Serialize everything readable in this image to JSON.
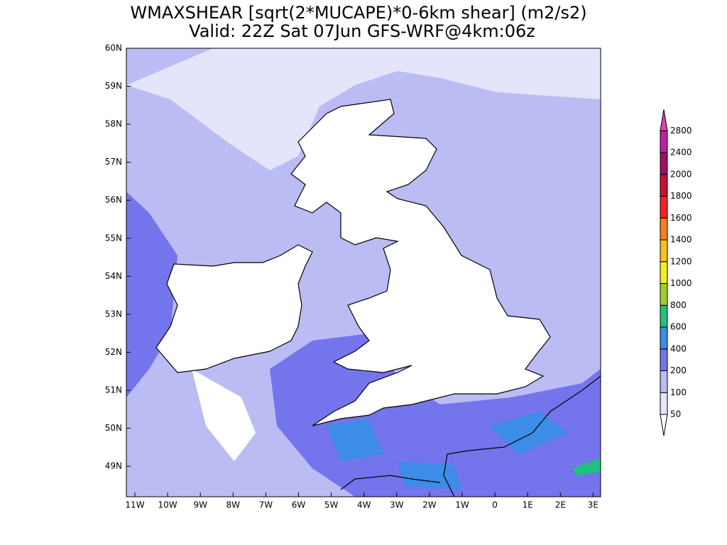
{
  "header": {
    "title": "WMAXSHEAR [sqrt(2*MUCAPE)*0-6km shear] (m2/s2)",
    "subtitle": "Valid: 22Z Sat 07Jun GFS-WRF@4km:06z"
  },
  "map": {
    "lat_labels": [
      "60N",
      "59N",
      "58N",
      "57N",
      "56N",
      "55N",
      "54N",
      "53N",
      "52N",
      "51N",
      "50N",
      "49N"
    ],
    "lon_labels": [
      "11W",
      "10W",
      "9W",
      "8W",
      "7W",
      "6W",
      "5W",
      "4W",
      "3W",
      "2W",
      "1W",
      "0",
      "1E",
      "2E",
      "3E"
    ]
  },
  "colorbar": {
    "levels": [
      50,
      100,
      200,
      400,
      600,
      800,
      1000,
      1200,
      1400,
      1600,
      1800,
      2000,
      2400,
      2800
    ],
    "colors": [
      "#ffffff",
      "#e4e4fa",
      "#bcbcf4",
      "#7474ec",
      "#3c8ce8",
      "#22c07c",
      "#9cd030",
      "#f0f020",
      "#f8c020",
      "#f88020",
      "#f82020",
      "#c81030",
      "#a01060",
      "#c020a0",
      "#e040b0"
    ]
  }
}
